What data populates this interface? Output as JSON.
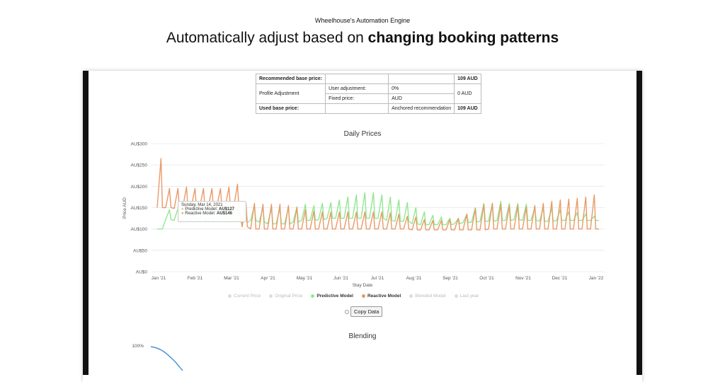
{
  "header": {
    "eyebrow": "Wheelhouse's Automation Engine",
    "headline_prefix": "Automatically adjust based on ",
    "headline_bold": "changing booking patterns"
  },
  "price_table": {
    "recommended_label": "Recommended base price:",
    "recommended_value": "109 AUD",
    "profile_label": "Profile Adjustment",
    "user_adjustment_label": "User adjustment:",
    "user_adjustment_value": "0%",
    "fixed_price_label": "Fixed price:",
    "fixed_price_value": "AUD",
    "profile_total": "0 AUD",
    "used_label": "Used base price:",
    "used_note": "Anchored recommendation",
    "used_value": "109 AUD"
  },
  "chart_data": {
    "type": "line",
    "title": "Daily Prices",
    "xlabel": "Stay Date",
    "ylabel": "Price AUD",
    "ylim": [
      0,
      300
    ],
    "y_ticks": [
      "AU$0",
      "AU$50",
      "AU$100",
      "AU$150",
      "AU$200",
      "AU$250",
      "AU$300"
    ],
    "x_ticks": [
      "Jan '21",
      "Feb '21",
      "Mar '21",
      "Apr '21",
      "May '21",
      "Jun '21",
      "Jul '21",
      "Aug '21",
      "Sep '21",
      "Oct '21",
      "Nov '21",
      "Dec '21",
      "Jan '22"
    ],
    "grid": true,
    "legend_position": "bottom",
    "series": [
      {
        "name": "Predictive Model",
        "color": "#8fe88f",
        "weekly_low": [
          100,
          122,
          120,
          120,
          120,
          120,
          120,
          120,
          122,
          120,
          115,
          120,
          116,
          112,
          112,
          112,
          116,
          120,
          120,
          122,
          125,
          125,
          125,
          125,
          125,
          125,
          125,
          120,
          118,
          118,
          112,
          110,
          110,
          110,
          110,
          112,
          115,
          116,
          118,
          118,
          120,
          120,
          122,
          120,
          120,
          118,
          118,
          120,
          120,
          120,
          120,
          120,
          120
        ],
        "weekly_high": [
          100,
          145,
          148,
          145,
          145,
          145,
          145,
          145,
          148,
          150,
          150,
          155,
          150,
          148,
          148,
          150,
          152,
          158,
          155,
          160,
          162,
          168,
          175,
          180,
          185,
          185,
          180,
          175,
          168,
          162,
          150,
          140,
          132,
          128,
          125,
          125,
          135,
          150,
          160,
          160,
          165,
          160,
          160,
          158,
          150,
          150,
          148,
          145,
          140,
          138,
          135,
          130,
          125
        ]
      },
      {
        "name": "Reactive Model",
        "color": "#e89a68",
        "weekly_low": [
          150,
          150,
          148,
          150,
          150,
          150,
          150,
          150,
          152,
          150,
          105,
          100,
          100,
          100,
          100,
          100,
          100,
          100,
          100,
          100,
          100,
          100,
          100,
          100,
          100,
          100,
          100,
          100,
          100,
          100,
          98,
          98,
          98,
          98,
          98,
          98,
          98,
          98,
          98,
          100,
          100,
          100,
          100,
          100,
          100,
          100,
          100,
          100,
          100,
          100,
          100,
          100,
          100
        ],
        "weekly_high": [
          265,
          195,
          195,
          198,
          195,
          195,
          195,
          195,
          198,
          205,
          162,
          160,
          158,
          158,
          158,
          155,
          150,
          145,
          142,
          140,
          140,
          140,
          140,
          140,
          140,
          140,
          140,
          138,
          135,
          130,
          128,
          122,
          120,
          120,
          122,
          125,
          135,
          148,
          158,
          160,
          158,
          155,
          155,
          152,
          155,
          160,
          165,
          168,
          170,
          172,
          175,
          180,
          185
        ]
      }
    ],
    "legend": [
      {
        "label": "Current Price",
        "active": false
      },
      {
        "label": "Original Price",
        "active": false
      },
      {
        "label": "Predictive Model",
        "active": true
      },
      {
        "label": "Reactive Model",
        "active": true
      },
      {
        "label": "Blended Model",
        "active": false
      },
      {
        "label": "Last year",
        "active": false
      }
    ]
  },
  "tooltip": {
    "date": "Sunday, Mar 14, 2021",
    "predictive_label": "Predictive Model:",
    "predictive_value": "AU$127",
    "reactive_label": "Reactive Model:",
    "reactive_value": "AU$146"
  },
  "copy_button": "Copy Data",
  "blending": {
    "title": "Blending",
    "y_top_label": "100%"
  }
}
